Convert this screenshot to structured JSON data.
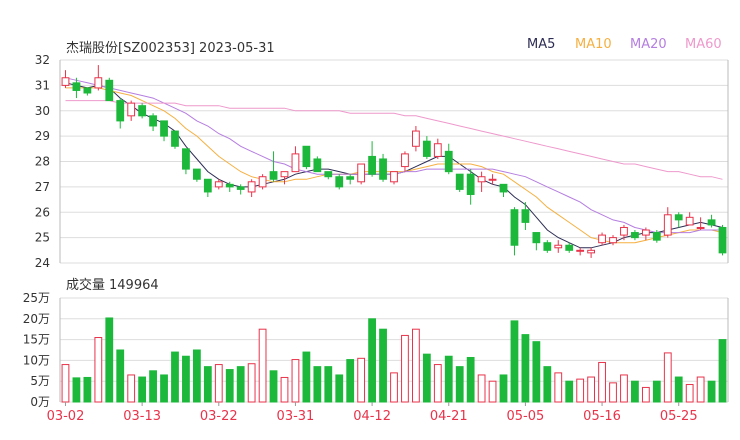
{
  "header": {
    "title": "杰瑞股份[SZ002353] 2023-05-31"
  },
  "legend": [
    {
      "label": "MA5",
      "color": "#2d2d55"
    },
    {
      "label": "MA10",
      "color": "#f5b041"
    },
    {
      "label": "MA20",
      "color": "#b57ee0"
    },
    {
      "label": "MA60",
      "color": "#ee99cc"
    }
  ],
  "volume": {
    "label": "成交量",
    "value": "149964"
  },
  "colors": {
    "up": "#e8334a",
    "down": "#1cb83b",
    "grid": "#dddddd",
    "axis": "#333333"
  },
  "chart_data": [
    {
      "type": "candlestick",
      "title": "杰瑞股份[SZ002353] 2023-05-31",
      "ylim": [
        24,
        32
      ],
      "yticks": [
        24,
        25,
        26,
        27,
        28,
        29,
        30,
        31,
        32
      ],
      "dates": [
        "03-02",
        "03-03",
        "03-06",
        "03-07",
        "03-08",
        "03-09",
        "03-10",
        "03-13",
        "03-14",
        "03-15",
        "03-16",
        "03-17",
        "03-20",
        "03-21",
        "03-22",
        "03-23",
        "03-24",
        "03-27",
        "03-28",
        "03-29",
        "03-30",
        "03-31",
        "04-03",
        "04-04",
        "04-06",
        "04-07",
        "04-10",
        "04-11",
        "04-12",
        "04-13",
        "04-14",
        "04-17",
        "04-18",
        "04-19",
        "04-20",
        "04-21",
        "04-24",
        "04-25",
        "04-26",
        "04-27",
        "04-28",
        "05-04",
        "05-05",
        "05-08",
        "05-09",
        "05-10",
        "05-11",
        "05-12",
        "05-15",
        "05-16",
        "05-17",
        "05-18",
        "05-19",
        "05-22",
        "05-23",
        "05-24",
        "05-25",
        "05-26",
        "05-29",
        "05-30",
        "05-31"
      ],
      "xtick_labels": [
        "03-02",
        "03-13",
        "03-22",
        "03-31",
        "04-12",
        "04-21",
        "05-05",
        "05-16",
        "05-25"
      ],
      "open": [
        31.0,
        31.1,
        30.9,
        30.9,
        31.2,
        30.4,
        29.8,
        30.2,
        29.8,
        29.6,
        29.2,
        28.5,
        27.7,
        27.3,
        27.0,
        27.1,
        27.0,
        26.8,
        27.0,
        27.6,
        27.4,
        27.6,
        28.6,
        28.1,
        27.6,
        27.4,
        27.4,
        27.2,
        28.2,
        28.1,
        27.2,
        27.8,
        28.6,
        28.8,
        28.2,
        28.4,
        27.5,
        27.5,
        27.2,
        27.3,
        27.1,
        26.1,
        26.1,
        25.2,
        24.8,
        24.6,
        24.7,
        24.5,
        24.4,
        24.8,
        24.8,
        25.1,
        25.2,
        25.1,
        25.2,
        25.1,
        25.9,
        25.5,
        25.4,
        25.7,
        25.4
      ],
      "close": [
        31.3,
        30.8,
        30.7,
        31.3,
        30.4,
        29.6,
        30.3,
        29.8,
        29.4,
        29.0,
        28.6,
        27.7,
        27.3,
        26.8,
        27.2,
        27.0,
        26.9,
        27.2,
        27.4,
        27.3,
        27.6,
        28.3,
        27.8,
        27.6,
        27.4,
        27.0,
        27.3,
        27.9,
        27.5,
        27.3,
        27.6,
        28.3,
        29.2,
        28.2,
        28.7,
        27.6,
        26.9,
        26.7,
        27.4,
        27.3,
        26.8,
        24.7,
        25.6,
        24.8,
        24.5,
        24.7,
        24.5,
        24.5,
        24.5,
        25.1,
        25.0,
        25.4,
        25.0,
        25.3,
        24.9,
        25.9,
        25.7,
        25.8,
        25.4,
        25.5,
        24.4
      ],
      "high": [
        31.6,
        31.3,
        30.9,
        31.8,
        31.3,
        30.5,
        30.4,
        30.3,
        29.9,
        29.6,
        29.2,
        28.5,
        27.7,
        27.3,
        27.3,
        27.2,
        27.1,
        27.3,
        27.5,
        28.4,
        27.6,
        28.6,
        28.6,
        28.2,
        27.6,
        27.5,
        27.5,
        27.9,
        28.8,
        28.3,
        27.6,
        28.4,
        29.4,
        29.0,
        28.9,
        28.7,
        27.5,
        27.7,
        27.6,
        27.5,
        27.1,
        26.2,
        26.4,
        25.2,
        24.9,
        24.9,
        24.8,
        24.6,
        24.6,
        25.2,
        25.1,
        25.5,
        25.3,
        25.4,
        25.3,
        26.2,
        26.0,
        26.0,
        25.8,
        25.9,
        25.5
      ],
      "low": [
        30.9,
        30.5,
        30.6,
        30.8,
        30.4,
        29.3,
        29.6,
        29.7,
        29.2,
        28.8,
        28.5,
        27.5,
        27.2,
        26.6,
        26.9,
        26.8,
        26.7,
        26.6,
        26.9,
        27.2,
        27.1,
        27.6,
        27.7,
        27.6,
        27.3,
        26.9,
        27.1,
        27.1,
        27.4,
        27.2,
        27.1,
        27.6,
        28.4,
        28.1,
        28.1,
        27.5,
        26.8,
        26.3,
        26.8,
        27.1,
        26.6,
        24.3,
        25.3,
        24.5,
        24.4,
        24.4,
        24.4,
        24.3,
        24.2,
        24.7,
        24.7,
        24.9,
        24.9,
        24.9,
        24.8,
        25.0,
        25.4,
        25.5,
        25.3,
        25.4,
        24.3
      ],
      "ma": {
        "MA5": [
          31.1,
          31.0,
          30.9,
          31.0,
          30.9,
          30.5,
          30.2,
          29.9,
          29.7,
          29.5,
          29.2,
          28.6,
          28.1,
          27.6,
          27.3,
          27.1,
          27.0,
          27.0,
          27.1,
          27.2,
          27.3,
          27.5,
          27.6,
          27.7,
          27.7,
          27.6,
          27.5,
          27.5,
          27.5,
          27.5,
          27.5,
          27.6,
          27.8,
          28.0,
          28.2,
          28.2,
          27.9,
          27.6,
          27.3,
          27.1,
          27.0,
          26.6,
          26.3,
          25.8,
          25.3,
          25.0,
          24.8,
          24.6,
          24.6,
          24.7,
          24.8,
          25.0,
          25.1,
          25.2,
          25.2,
          25.3,
          25.4,
          25.5,
          25.6,
          25.5,
          25.4
        ],
        "MA10": [
          30.9,
          30.9,
          30.9,
          30.9,
          30.8,
          30.7,
          30.6,
          30.4,
          30.2,
          30.0,
          29.7,
          29.3,
          29.0,
          28.6,
          28.2,
          27.9,
          27.6,
          27.4,
          27.3,
          27.2,
          27.2,
          27.3,
          27.3,
          27.4,
          27.5,
          27.5,
          27.5,
          27.6,
          27.6,
          27.6,
          27.6,
          27.6,
          27.7,
          27.8,
          27.9,
          27.9,
          27.9,
          27.9,
          27.8,
          27.6,
          27.5,
          27.2,
          26.9,
          26.6,
          26.2,
          25.9,
          25.6,
          25.3,
          25.0,
          24.9,
          24.8,
          24.8,
          24.8,
          24.9,
          25.0,
          25.1,
          25.2,
          25.3,
          25.3,
          25.3,
          25.2
        ],
        "MA20": [
          31.3,
          31.2,
          31.1,
          31.0,
          30.9,
          30.8,
          30.7,
          30.6,
          30.5,
          30.3,
          30.1,
          29.9,
          29.6,
          29.4,
          29.1,
          28.9,
          28.6,
          28.4,
          28.2,
          28.0,
          27.9,
          27.7,
          27.6,
          27.5,
          27.5,
          27.5,
          27.5,
          27.5,
          27.5,
          27.5,
          27.5,
          27.6,
          27.6,
          27.7,
          27.7,
          27.7,
          27.7,
          27.7,
          27.7,
          27.7,
          27.6,
          27.5,
          27.4,
          27.2,
          27.0,
          26.8,
          26.6,
          26.4,
          26.1,
          25.9,
          25.7,
          25.6,
          25.4,
          25.3,
          25.2,
          25.2,
          25.2,
          25.2,
          25.3,
          25.3,
          25.3
        ],
        "MA60": [
          30.4,
          30.4,
          30.4,
          30.4,
          30.4,
          30.3,
          30.3,
          30.3,
          30.3,
          30.3,
          30.3,
          30.2,
          30.2,
          30.2,
          30.2,
          30.1,
          30.1,
          30.1,
          30.1,
          30.1,
          30.1,
          30.0,
          30.0,
          30.0,
          30.0,
          30.0,
          29.9,
          29.9,
          29.9,
          29.9,
          29.9,
          29.8,
          29.8,
          29.7,
          29.6,
          29.5,
          29.4,
          29.3,
          29.2,
          29.1,
          29.0,
          28.9,
          28.8,
          28.7,
          28.6,
          28.5,
          28.4,
          28.3,
          28.2,
          28.1,
          28.0,
          27.9,
          27.9,
          27.8,
          27.7,
          27.6,
          27.6,
          27.5,
          27.4,
          27.4,
          27.3
        ]
      }
    },
    {
      "type": "bar",
      "title": "成交量 149964",
      "ylim": [
        0,
        25
      ],
      "ytick_labels": [
        "0万",
        "5万",
        "10万",
        "15万",
        "20万",
        "25万"
      ],
      "unit": "万",
      "values": [
        9.0,
        5.8,
        5.9,
        15.5,
        20.2,
        12.5,
        6.5,
        6.0,
        7.5,
        6.5,
        12.0,
        11.0,
        12.5,
        8.5,
        9.0,
        7.8,
        8.5,
        9.2,
        17.5,
        7.5,
        5.9,
        10.2,
        12.0,
        8.5,
        8.5,
        6.5,
        10.2,
        10.5,
        20.0,
        17.5,
        7.0,
        16.0,
        17.5,
        11.5,
        9.0,
        11.0,
        8.5,
        10.7,
        6.5,
        5.0,
        6.5,
        19.5,
        16.2,
        14.5,
        8.5,
        7.0,
        5.0,
        5.5,
        6.0,
        9.5,
        4.6,
        6.5,
        5.0,
        3.5,
        5.0,
        11.8,
        6.0,
        4.2,
        6.0,
        5.0,
        15.0
      ]
    }
  ]
}
